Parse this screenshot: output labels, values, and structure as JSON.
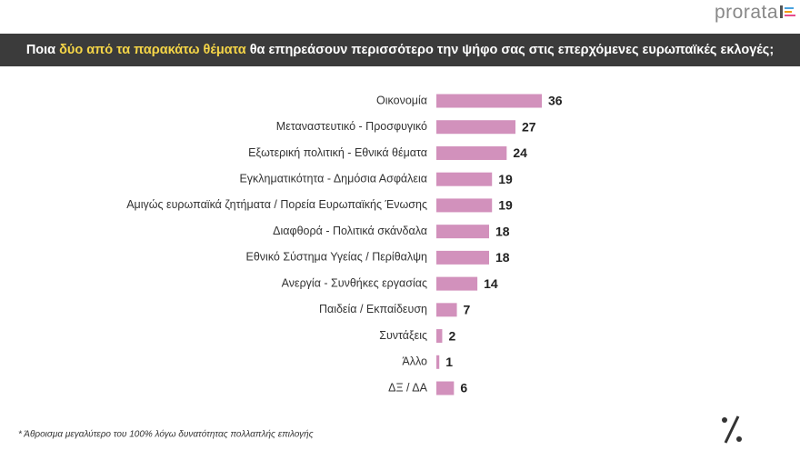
{
  "brand": "prorata",
  "chart_data": {
    "type": "bar",
    "orientation": "horizontal",
    "title_parts": [
      "Ποια",
      "δύο από τα παρακάτω θέματα",
      "θα επηρεάσουν περισσότερο την ψήφο σας στις επερχόμενες ευρωπαϊκές εκλογές;"
    ],
    "categories": [
      "Οικονομία",
      "Μεταναστευτικό - Προσφυγικό",
      "Εξωτερική πολιτική - Εθνικά θέματα",
      "Εγκληματικότητα - Δημόσια Ασφάλεια",
      "Αμιγώς ευρωπαϊκά ζητήματα / Πορεία Ευρωπαϊκής Ένωσης",
      "Διαφθορά - Πολιτικά σκάνδαλα",
      "Εθνικό Σύστημα Υγείας / Περίθαλψη",
      "Ανεργία - Συνθήκες εργασίας",
      "Παιδεία / Εκπαίδευση",
      "Συντάξεις",
      "Άλλο",
      "ΔΞ / ΔΑ"
    ],
    "values": [
      36,
      27,
      24,
      19,
      19,
      18,
      18,
      14,
      7,
      2,
      1,
      6
    ],
    "color": "#d291bc",
    "footnote": "* Άθροισμα μεγαλύτερο του 100% λόγω δυνατότητας πολλαπλής επιλογής"
  }
}
